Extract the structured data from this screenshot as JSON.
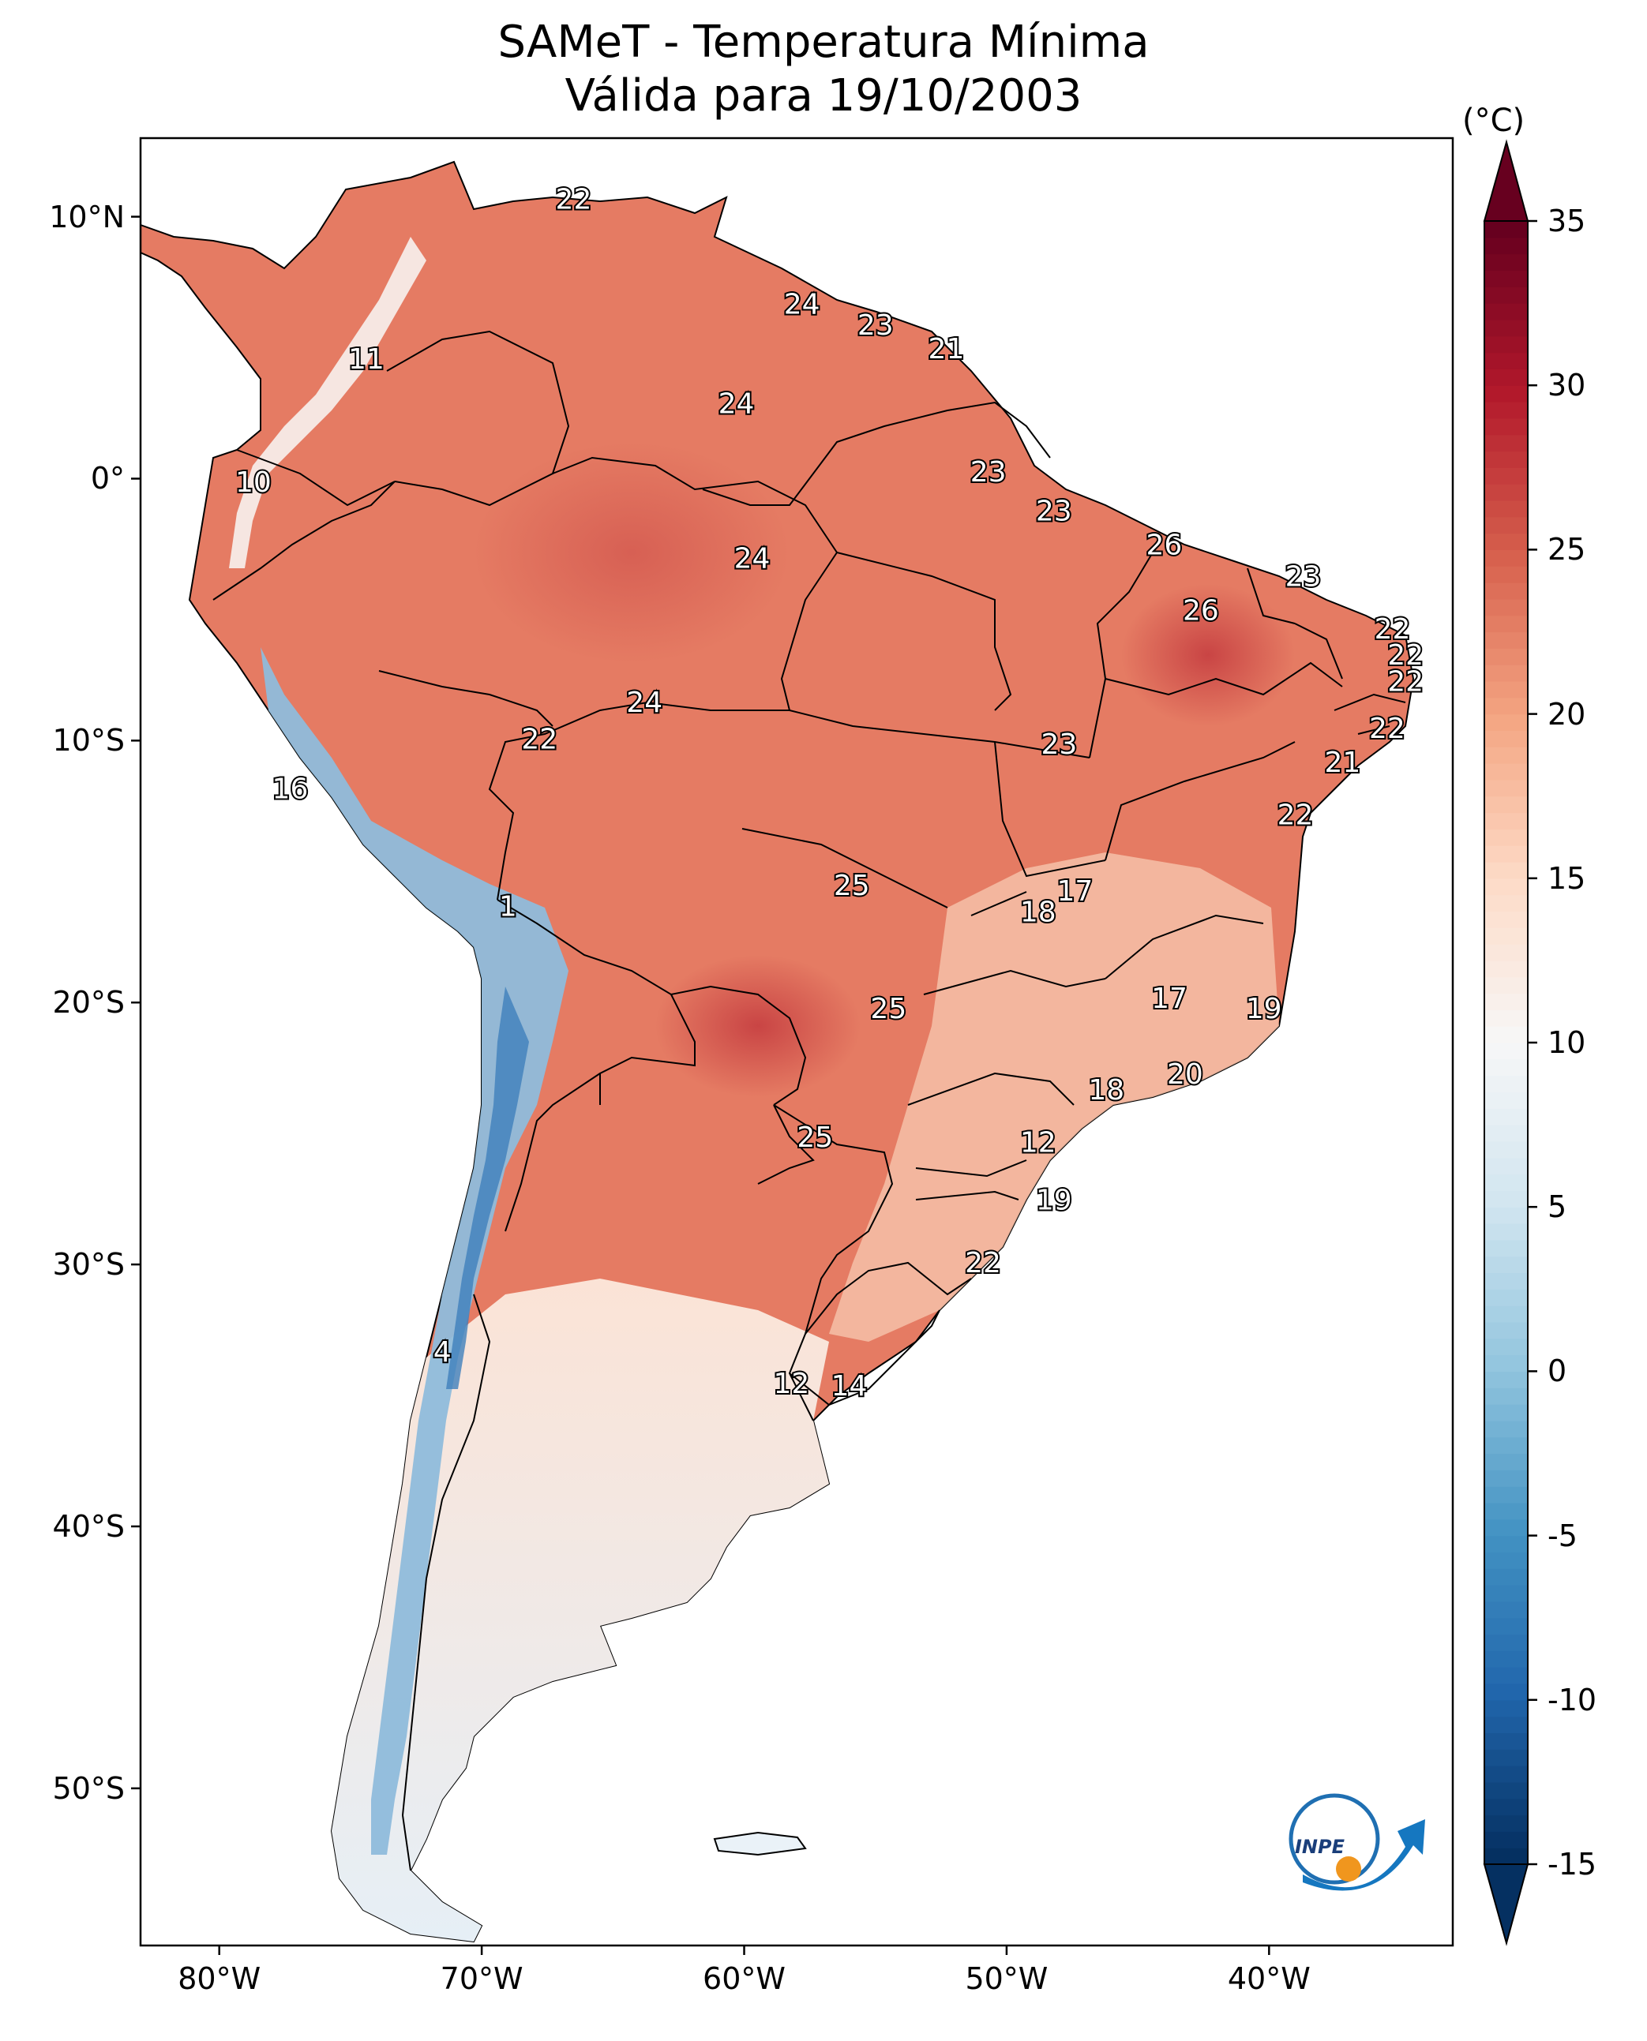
{
  "title": "SAMeT - Temperatura Mínima",
  "subtitle": "Válida para 19/10/2003",
  "colorbar": {
    "unit": "(°C)",
    "ticks": [
      "35",
      "30",
      "25",
      "20",
      "15",
      "10",
      "5",
      "0",
      "-5",
      "-10",
      "-15"
    ],
    "min": -15,
    "max": 35,
    "colors": [
      "#053061",
      "#2166ac",
      "#4393c3",
      "#92c5de",
      "#d1e5f0",
      "#f7f7f7",
      "#fddbc7",
      "#f4a582",
      "#d6604d",
      "#b2182b",
      "#67001f"
    ]
  },
  "axes": {
    "lon_ticks": [
      "80°W",
      "70°W",
      "60°W",
      "50°W",
      "40°W"
    ],
    "lat_ticks": [
      "10°N",
      "0°",
      "10°S",
      "20°S",
      "30°S",
      "40°S",
      "50°S"
    ]
  },
  "annotations": [
    {
      "label": "22",
      "lon": -66.5,
      "lat": 10.6
    },
    {
      "label": "24",
      "lon": -57.8,
      "lat": 6.6
    },
    {
      "label": "23",
      "lon": -55.0,
      "lat": 5.8
    },
    {
      "label": "21",
      "lon": -52.3,
      "lat": 4.9
    },
    {
      "label": "11",
      "lon": -74.4,
      "lat": 4.5
    },
    {
      "label": "24",
      "lon": -60.3,
      "lat": 2.8
    },
    {
      "label": "23",
      "lon": -50.7,
      "lat": 0.2
    },
    {
      "label": "10",
      "lon": -78.7,
      "lat": -0.2
    },
    {
      "label": "23",
      "lon": -48.2,
      "lat": -1.3
    },
    {
      "label": "26",
      "lon": -44.0,
      "lat": -2.6
    },
    {
      "label": "24",
      "lon": -59.7,
      "lat": -3.1
    },
    {
      "label": "23",
      "lon": -38.7,
      "lat": -3.8
    },
    {
      "label": "26",
      "lon": -42.6,
      "lat": -5.1
    },
    {
      "label": "22",
      "lon": -35.3,
      "lat": -5.8
    },
    {
      "label": "22",
      "lon": -34.8,
      "lat": -6.8
    },
    {
      "label": "22",
      "lon": -34.8,
      "lat": -7.8
    },
    {
      "label": "24",
      "lon": -63.8,
      "lat": -8.6
    },
    {
      "label": "22",
      "lon": -35.5,
      "lat": -9.6
    },
    {
      "label": "22",
      "lon": -67.8,
      "lat": -10.0
    },
    {
      "label": "23",
      "lon": -48.0,
      "lat": -10.2
    },
    {
      "label": "21",
      "lon": -37.2,
      "lat": -10.9
    },
    {
      "label": "16",
      "lon": -77.3,
      "lat": -11.9
    },
    {
      "label": "22",
      "lon": -39.0,
      "lat": -12.9
    },
    {
      "label": "25",
      "lon": -55.9,
      "lat": -15.6
    },
    {
      "label": "17",
      "lon": -47.4,
      "lat": -15.8
    },
    {
      "label": "18",
      "lon": -48.8,
      "lat": -16.6
    },
    {
      "label": "1",
      "lon": -69.0,
      "lat": -16.4
    },
    {
      "label": "17",
      "lon": -43.8,
      "lat": -19.9
    },
    {
      "label": "25",
      "lon": -54.5,
      "lat": -20.3
    },
    {
      "label": "19",
      "lon": -40.2,
      "lat": -20.3
    },
    {
      "label": "20",
      "lon": -43.2,
      "lat": -22.8
    },
    {
      "label": "18",
      "lon": -46.2,
      "lat": -23.4
    },
    {
      "label": "25",
      "lon": -57.3,
      "lat": -25.2
    },
    {
      "label": "12",
      "lon": -48.8,
      "lat": -25.4
    },
    {
      "label": "19",
      "lon": -48.2,
      "lat": -27.6
    },
    {
      "label": "22",
      "lon": -50.9,
      "lat": -30.0
    },
    {
      "label": "4",
      "lon": -71.5,
      "lat": -33.4
    },
    {
      "label": "12",
      "lon": -58.2,
      "lat": -34.6
    },
    {
      "label": "14",
      "lon": -56.0,
      "lat": -34.7
    }
  ],
  "logo": {
    "text": "INPE"
  }
}
